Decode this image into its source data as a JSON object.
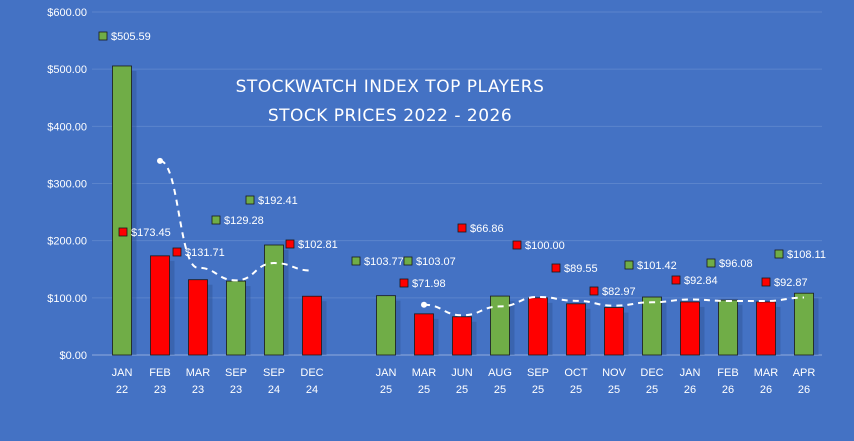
{
  "chart_data": {
    "type": "bar",
    "title_line1": "STOCKWATCH INDEX TOP PLAYERS",
    "title_line2": "STOCK PRICES 2022 - 2026",
    "ylim": [
      0,
      600
    ],
    "yticks": [
      "$0.00",
      "$100.00",
      "$200.00",
      "$300.00",
      "$400.00",
      "$500.00",
      "$600.00"
    ],
    "grid": true,
    "categories": [
      [
        "JAN",
        "22"
      ],
      [
        "FEB",
        "23"
      ],
      [
        "MAR",
        "23"
      ],
      [
        "SEP",
        "23"
      ],
      [
        "SEP",
        "24"
      ],
      [
        "DEC",
        "24"
      ],
      [
        "JAN",
        "25"
      ],
      [
        "MAR",
        "25"
      ],
      [
        "JUN",
        "25"
      ],
      [
        "AUG",
        "25"
      ],
      [
        "SEP",
        "25"
      ],
      [
        "OCT",
        "25"
      ],
      [
        "NOV",
        "25"
      ],
      [
        "DEC",
        "25"
      ],
      [
        "JAN",
        "26"
      ],
      [
        "FEB",
        "26"
      ],
      [
        "MAR",
        "26"
      ],
      [
        "APR",
        "26"
      ]
    ],
    "values": [
      505.59,
      173.45,
      131.71,
      129.28,
      192.41,
      102.81,
      103.77,
      71.98,
      66.86,
      103.07,
      100.0,
      89.55,
      82.97,
      101.42,
      92.84,
      96.08,
      92.87,
      108.11
    ],
    "labels": [
      "$505.59",
      "$173.45",
      "$131.71",
      "$129.28",
      "$192.41",
      "$102.81",
      "$103.77",
      "$71.98",
      "$66.86",
      "$103.07",
      "$100.00",
      "$89.55",
      "$82.97",
      "$101.42",
      "$92.84",
      "$96.08",
      "$92.87",
      "$108.11"
    ],
    "bar_colors": [
      "green",
      "red",
      "red",
      "green",
      "green",
      "red",
      "green",
      "red",
      "red",
      "green",
      "red",
      "red",
      "red",
      "green",
      "red",
      "green",
      "red",
      "green"
    ],
    "colors": {
      "green": "#70ad47",
      "red": "#ff0000",
      "background": "#4472c4",
      "grid": "#5b84cc"
    },
    "trendline": {
      "style": "dashed",
      "color": "#ffffff"
    }
  }
}
